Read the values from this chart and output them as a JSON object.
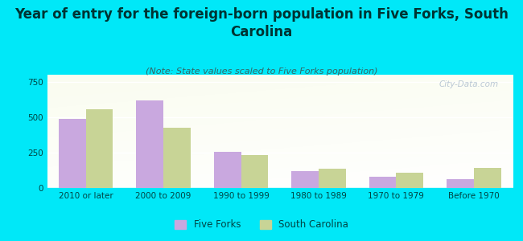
{
  "title": "Year of entry for the foreign-born population in Five Forks, South\nCarolina",
  "subtitle": "(Note: State values scaled to Five Forks population)",
  "categories": [
    "2010 or later",
    "2000 to 2009",
    "1990 to 1999",
    "1980 to 1989",
    "1970 to 1979",
    "Before 1970"
  ],
  "five_forks": [
    487,
    617,
    258,
    120,
    82,
    65
  ],
  "south_carolina": [
    557,
    425,
    232,
    138,
    108,
    143
  ],
  "bar_color_ff": "#c9a8df",
  "bar_color_sc": "#c8d496",
  "background_color": "#00e8f8",
  "ylim": [
    0,
    800
  ],
  "yticks": [
    0,
    250,
    500,
    750
  ],
  "watermark": "City-Data.com",
  "legend_ff": "Five Forks",
  "legend_sc": "South Carolina",
  "title_fontsize": 12,
  "subtitle_fontsize": 8,
  "tick_fontsize": 7.5,
  "bar_width": 0.35,
  "title_color": "#003333",
  "subtitle_color": "#336666",
  "tick_color": "#004444",
  "watermark_color": "#aabbcc"
}
